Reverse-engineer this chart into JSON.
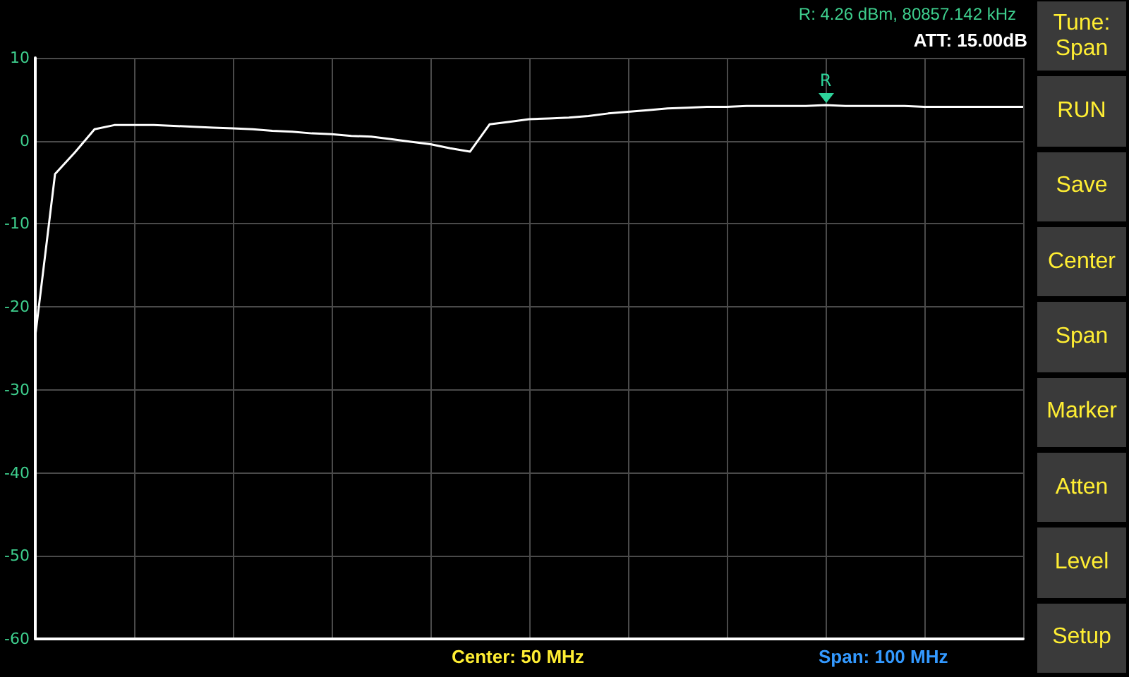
{
  "chart_data": {
    "type": "line",
    "categories": [
      null,
      null,
      null,
      null,
      null,
      null,
      null,
      null,
      null,
      null,
      null,
      null,
      null,
      null,
      null,
      null,
      null,
      null,
      null,
      null,
      null,
      null,
      null,
      null,
      null,
      null,
      null,
      null,
      null,
      null,
      null,
      null,
      null,
      null,
      null,
      null,
      null,
      null,
      null,
      null,
      null,
      null,
      null,
      null,
      null,
      null,
      null,
      null,
      null,
      null,
      null
    ],
    "series": [
      {
        "color": "#ffffff",
        "values": [
          -23.5,
          -4.0,
          -1.4,
          1.4,
          1.9,
          1.9,
          1.9,
          1.8,
          1.7,
          1.6,
          1.5,
          1.4,
          1.2,
          1.1,
          0.9,
          0.8,
          0.6,
          0.5,
          0.2,
          -0.1,
          -0.4,
          -0.9,
          -1.3,
          2.0,
          2.3,
          2.6,
          2.7,
          2.8,
          3.0,
          3.3,
          3.5,
          3.7,
          3.9,
          4.0,
          4.1,
          4.1,
          4.2,
          4.2,
          4.2,
          4.2,
          4.3,
          4.2,
          4.2,
          4.2,
          4.2,
          4.1,
          4.1,
          4.1,
          4.1,
          4.1,
          4.1
        ]
      }
    ],
    "ylim": [
      -60,
      10
    ],
    "yticks": [
      -60,
      -50,
      -40,
      -30,
      -20,
      -10,
      0,
      10
    ],
    "tick_labels": "y",
    "grid": true,
    "marker": "none",
    "annotations": [
      "R: 4.26 dBm, 80857.142 kHz",
      "ATT: 15.00dB",
      "Center: 50 MHz",
      "Span: 100 MHz",
      "Tune: Span",
      "RUN",
      "Save",
      "Center",
      "Span",
      "Marker",
      "Atten",
      "Level",
      "Setup",
      {
        "text": "R"
      }
    ]
  }
}
